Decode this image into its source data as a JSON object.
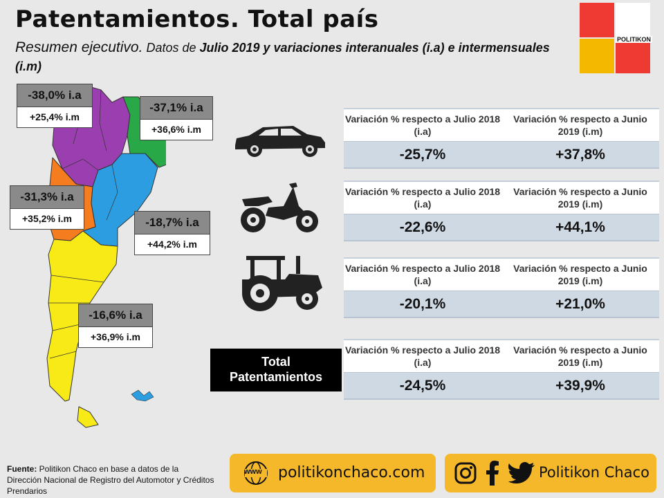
{
  "header": {
    "title": "Patentamientos. Total país",
    "subtitle_lead": "Resumen ejecutivo.",
    "subtitle_mid": " Datos de ",
    "subtitle_bold": "Julio 2019 y variaciones interanuales (i.a) e intermensuales (i.m)"
  },
  "logo": {
    "label": "POLITIKON",
    "colors": [
      "#ee3a33",
      "#ffffff",
      "#f5b800",
      "#ee3a33"
    ]
  },
  "map_tags": [
    {
      "ia": "-38,0% i.a",
      "im": "+25,4% i.m"
    },
    {
      "ia": "-37,1% i.a",
      "im": "+36,6% i.m"
    },
    {
      "ia": "-31,3% i.a",
      "im": "+35,2% i.m"
    },
    {
      "ia": "-18,7% i.a",
      "im": "+44,2% i.m"
    },
    {
      "ia": "-16,6% i.a",
      "im": "+36,9% i.m"
    }
  ],
  "region_colors": {
    "noa": "#9b3fb0",
    "nea": "#29a847",
    "cuyo": "#f57c1f",
    "centro": "#2b9de0",
    "patagonia": "#f8ea16"
  },
  "tables": [
    {
      "icon": "car-icon",
      "col1": "Variación % respecto a Julio 2018 (i.a)",
      "col2": "Variación % respecto a Junio 2019 (i.m)",
      "v1": "-25,7%",
      "v2": "+37,8%"
    },
    {
      "icon": "motorcycle-icon",
      "col1": "Variación % respecto a Julio 2018 (i.a)",
      "col2": "Variación % respecto a Junio 2019 (i.m)",
      "v1": "-22,6%",
      "v2": "+44,1%"
    },
    {
      "icon": "tractor-icon",
      "col1": "Variación % respecto a Julio 2018 (i.a)",
      "col2": "Variación % respecto a Junio 2019 (i.m)",
      "v1": "-20,1%",
      "v2": "+21,0%"
    },
    {
      "icon": "total-label",
      "col1": "Variación % respecto a Julio 2018 (i.a)",
      "col2": "Variación % respecto a Junio 2019 (i.m)",
      "v1": "-24,5%",
      "v2": "+39,9%"
    }
  ],
  "total_label_line1": "Total",
  "total_label_line2": "Patentamientos",
  "footer": {
    "source_label": "Fuente:",
    "source_text": " Politikon Chaco en base a datos de la Dirección Nacional de Registro del Automotor y Créditos Prendarios",
    "web_icon_text": "www",
    "website": "politikonchaco.com",
    "social_name": "Politikon Chaco"
  }
}
